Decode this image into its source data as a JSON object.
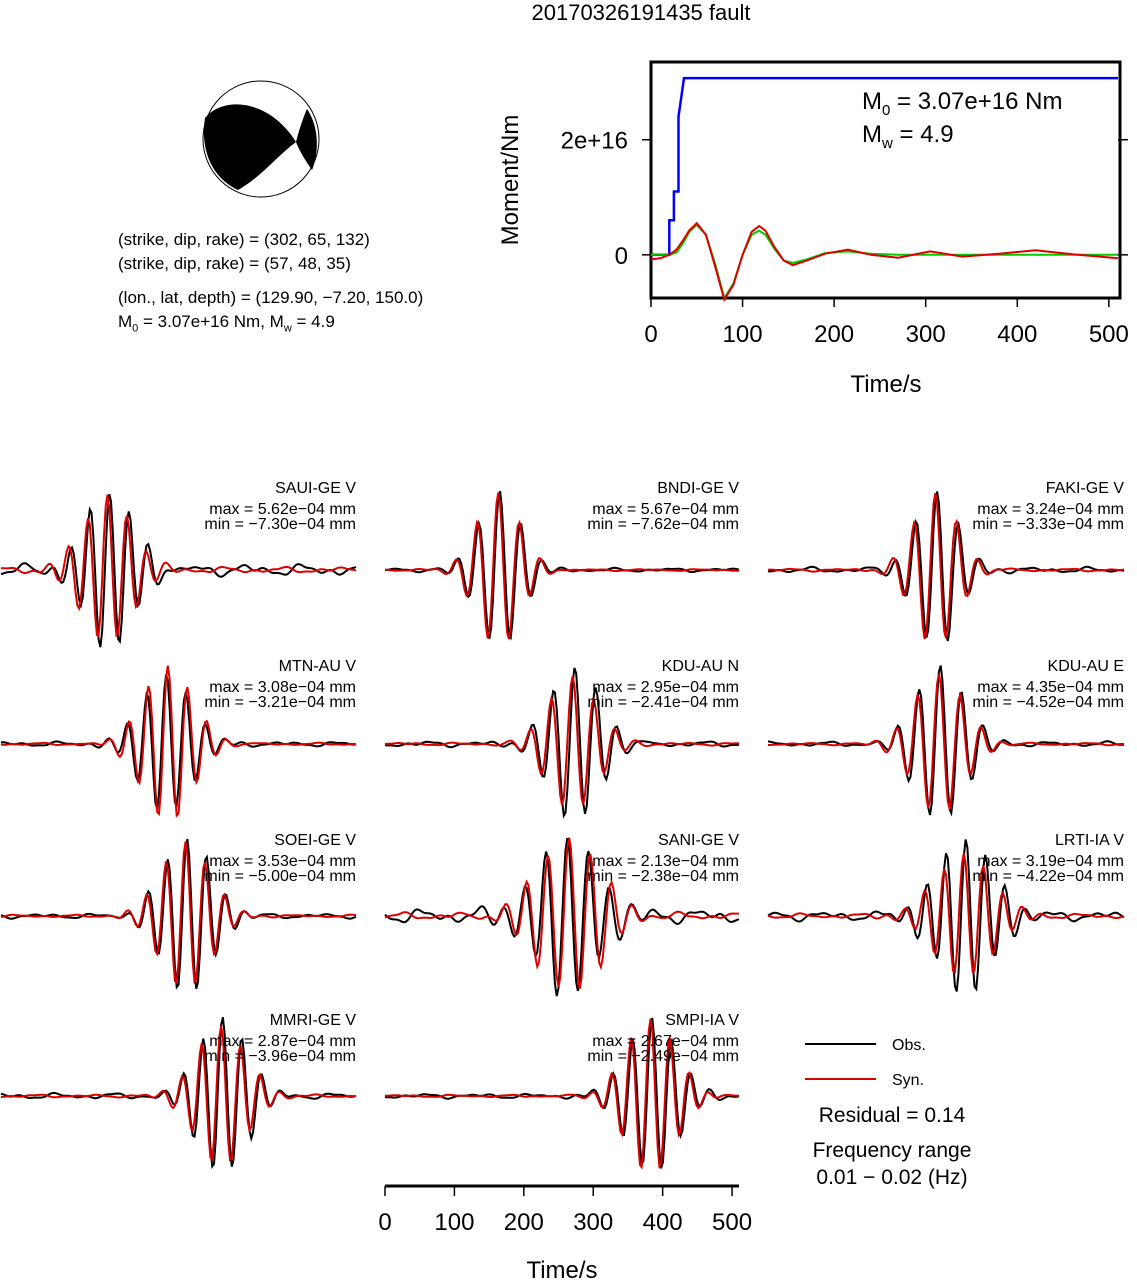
{
  "page": {
    "title": "20170326191435 fault"
  },
  "beachball": {
    "fill_color": "#000000",
    "nodal_planes": [
      "(strike, dip, rake) = (302, 65, 132)",
      "(strike, dip, rake) = (57, 48, 35)"
    ],
    "location": "(lon., lat, depth) = (129.90, −7.20, 150.0)",
    "moment_prefix": "M",
    "moment_sub": "0",
    "moment_mid": " = 3.07e+16 Nm, M",
    "magnitude_sub": "w",
    "magnitude_tail": " = 4.9"
  },
  "chart_data": [
    {
      "type": "line",
      "panel": "moment-rate",
      "ylabel": "Moment/Nm",
      "xlabel": "Time/s",
      "xlim": [
        0,
        510
      ],
      "x_ticks": [
        0,
        100,
        200,
        300,
        400,
        500
      ],
      "y_ticks": [
        {
          "value": 0,
          "label": "0"
        },
        {
          "value": 2e+16,
          "label": "2e+16"
        }
      ],
      "ylim": [
        -7500000000000000.0,
        3.35e+16
      ],
      "annotation": {
        "m0_label": "M",
        "m0_sub": "0",
        "m0_value": " = 3.07e+16 Nm",
        "mw_label": "M",
        "mw_sub": "w",
        "mw_value": " = 4.9"
      },
      "series": [
        {
          "color": "#0000ff",
          "x": [
            0,
            20,
            20,
            25,
            25,
            30,
            30,
            36,
            36,
            510
          ],
          "y": [
            0,
            0,
            6000000000000000.0,
            6000000000000000.0,
            1.1e+16,
            1.1e+16,
            2.4e+16,
            3.07e+16,
            3.07e+16,
            3.07e+16
          ]
        },
        {
          "color": "#00cc00",
          "x": [
            0,
            10,
            20,
            28,
            35,
            42,
            50,
            60,
            70,
            80,
            90,
            100,
            110,
            118,
            125,
            135,
            145,
            155,
            170,
            190,
            215,
            240,
            270,
            305,
            340,
            380,
            420,
            460,
            510
          ],
          "y": [
            0,
            0,
            0,
            400000000000000.0,
            2000000000000000.0,
            4000000000000000.0,
            5200000000000000.0,
            3500000000000000.0,
            -1500000000000000.0,
            -7500000000000000.0,
            -5000000000000000.0,
            0,
            3500000000000000.0,
            4200000000000000.0,
            3500000000000000.0,
            1000000000000000.0,
            -1000000000000000.0,
            -1400000000000000.0,
            -800000000000000.0,
            300000000000000.0,
            600000000000000.0,
            200000000000000.0,
            0,
            0,
            0,
            0,
            0,
            0,
            0
          ]
        },
        {
          "color": "#dd0000",
          "x": [
            0,
            10,
            20,
            28,
            35,
            42,
            50,
            60,
            70,
            80,
            90,
            100,
            110,
            118,
            125,
            135,
            145,
            155,
            170,
            190,
            215,
            240,
            270,
            305,
            340,
            380,
            420,
            460,
            490,
            510
          ],
          "y": [
            -800000000000000.0,
            -600000000000000.0,
            0,
            900000000000000.0,
            2500000000000000.0,
            4300000000000000.0,
            5500000000000000.0,
            3500000000000000.0,
            -2000000000000000.0,
            -7800000000000000.0,
            -5200000000000000.0,
            0,
            4000000000000000.0,
            5000000000000000.0,
            4200000000000000.0,
            1300000000000000.0,
            -1000000000000000.0,
            -1800000000000000.0,
            -1000000000000000.0,
            200000000000000.0,
            900000000000000.0,
            0,
            -500000000000000.0,
            600000000000000.0,
            -300000000000000.0,
            200000000000000.0,
            800000000000000.0,
            100000000000000.0,
            -300000000000000.0,
            -600000000000000.0
          ]
        }
      ]
    },
    {
      "type": "line",
      "panel": "waveforms",
      "xlabel": "Time/s",
      "xlim": [
        0,
        510
      ],
      "x_ticks": [
        0,
        100,
        200,
        300,
        400,
        500
      ],
      "legend": [
        {
          "label": "Obs.",
          "color": "#000000"
        },
        {
          "label": "Syn.",
          "color": "#dd0000"
        }
      ],
      "residual": "Residual = 0.14",
      "freq_title": "Frequency range",
      "freq_value": "0.01 − 0.02 (Hz)",
      "stations": [
        {
          "name": "SAUI-GE V",
          "max": "max = 5.62e−04 mm",
          "min": "min = −7.30e−04 mm",
          "packet_center": 0.3,
          "packet_width": 0.07,
          "freq": 0.055,
          "amp_obs": 1.0,
          "amp_syn": 0.95,
          "noise": 0.25,
          "lag": 0.006,
          "seed": 3
        },
        {
          "name": "BNDI-GE V",
          "max": "max = 5.67e−04 mm",
          "min": "min = −7.62e−04 mm",
          "packet_center": 0.32,
          "packet_width": 0.06,
          "freq": 0.06,
          "amp_obs": 1.0,
          "amp_syn": 1.0,
          "noise": 0.08,
          "lag": 0.004,
          "seed": 7
        },
        {
          "name": "FAKI-GE V",
          "max": "max = 3.24e−04 mm",
          "min": "min = −3.33e−04 mm",
          "packet_center": 0.47,
          "packet_width": 0.06,
          "freq": 0.06,
          "amp_obs": 1.0,
          "amp_syn": 1.0,
          "noise": 0.12,
          "lag": 0.005,
          "seed": 11
        },
        {
          "name": "MTN-AU V",
          "max": "max = 3.08e−04 mm",
          "min": "min = −3.21e−04 mm",
          "packet_center": 0.47,
          "packet_width": 0.07,
          "freq": 0.055,
          "amp_obs": 0.9,
          "amp_syn": 1.0,
          "noise": 0.1,
          "lag": -0.004,
          "seed": 13
        },
        {
          "name": "KDU-AU N",
          "max": "max = 2.95e−04 mm",
          "min": "min = −2.41e−04 mm",
          "packet_center": 0.53,
          "packet_width": 0.07,
          "freq": 0.06,
          "amp_obs": 1.0,
          "amp_syn": 0.85,
          "noise": 0.12,
          "lag": 0.006,
          "seed": 17
        },
        {
          "name": "KDU-AU E",
          "max": "max = 4.35e−04 mm",
          "min": "min = −4.52e−04 mm",
          "packet_center": 0.48,
          "packet_width": 0.07,
          "freq": 0.06,
          "amp_obs": 1.0,
          "amp_syn": 0.9,
          "noise": 0.1,
          "lag": 0.004,
          "seed": 19
        },
        {
          "name": "SOEI-GE V",
          "max": "max = 3.53e−04 mm",
          "min": "min = −5.00e−04 mm",
          "packet_center": 0.52,
          "packet_width": 0.07,
          "freq": 0.055,
          "amp_obs": 1.0,
          "amp_syn": 0.95,
          "noise": 0.1,
          "lag": 0.004,
          "seed": 23
        },
        {
          "name": "SANI-GE V",
          "max": "max = 2.13e−04 mm",
          "min": "min = −2.38e−04 mm",
          "packet_center": 0.52,
          "packet_width": 0.09,
          "freq": 0.06,
          "amp_obs": 1.0,
          "amp_syn": 1.0,
          "noise": 0.3,
          "lag": -0.005,
          "seed": 29
        },
        {
          "name": "LRTI-IA V",
          "max": "max = 3.19e−04 mm",
          "min": "min = −4.22e−04 mm",
          "packet_center": 0.55,
          "packet_width": 0.08,
          "freq": 0.055,
          "amp_obs": 1.0,
          "amp_syn": 0.8,
          "noise": 0.2,
          "lag": 0.006,
          "seed": 31
        },
        {
          "name": "MMRI-GE V",
          "max": "max = 2.87e−04 mm",
          "min": "min = −3.96e−04 mm",
          "packet_center": 0.62,
          "packet_width": 0.07,
          "freq": 0.055,
          "amp_obs": 1.0,
          "amp_syn": 0.9,
          "noise": 0.12,
          "lag": 0.004,
          "seed": 37
        },
        {
          "name": "SMPI-IA V",
          "max": "max = 2.67e−04 mm",
          "min": "min = −2.49e−04 mm",
          "packet_center": 0.75,
          "packet_width": 0.07,
          "freq": 0.055,
          "amp_obs": 1.0,
          "amp_syn": 1.0,
          "noise": 0.1,
          "lag": 0.004,
          "seed": 41
        }
      ]
    }
  ]
}
